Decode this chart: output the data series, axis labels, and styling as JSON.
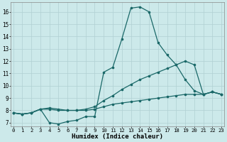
{
  "background_color": "#cce9ea",
  "grid_color": "#b0d0d2",
  "line_color": "#1a6868",
  "xlim": [
    -0.3,
    23.3
  ],
  "ylim": [
    6.7,
    16.8
  ],
  "yticks": [
    7,
    8,
    9,
    10,
    11,
    12,
    13,
    14,
    15,
    16
  ],
  "xticks": [
    0,
    1,
    2,
    3,
    4,
    5,
    6,
    7,
    8,
    9,
    10,
    11,
    12,
    13,
    14,
    15,
    16,
    17,
    18,
    19,
    20,
    21,
    22,
    23
  ],
  "xlabel": "Humidex (Indice chaleur)",
  "series": [
    [
      7.8,
      7.7,
      7.8,
      8.1,
      7.0,
      6.9,
      7.1,
      7.2,
      7.5,
      7.5,
      11.1,
      11.5,
      13.8,
      16.3,
      16.4,
      16.0,
      13.5,
      12.5,
      11.7,
      10.5,
      9.6,
      9.3,
      9.5,
      9.3
    ],
    [
      7.8,
      7.7,
      7.8,
      8.1,
      8.1,
      8.0,
      8.0,
      8.0,
      8.1,
      8.3,
      8.8,
      9.2,
      9.7,
      10.1,
      10.5,
      10.8,
      11.1,
      11.4,
      11.7,
      12.0,
      11.7,
      9.3,
      9.5,
      9.3
    ],
    [
      7.8,
      7.7,
      7.8,
      8.1,
      8.2,
      8.1,
      8.0,
      8.0,
      8.0,
      8.1,
      8.3,
      8.5,
      8.6,
      8.7,
      8.8,
      8.9,
      9.0,
      9.1,
      9.2,
      9.3,
      9.3,
      9.3,
      9.5,
      9.3
    ]
  ]
}
